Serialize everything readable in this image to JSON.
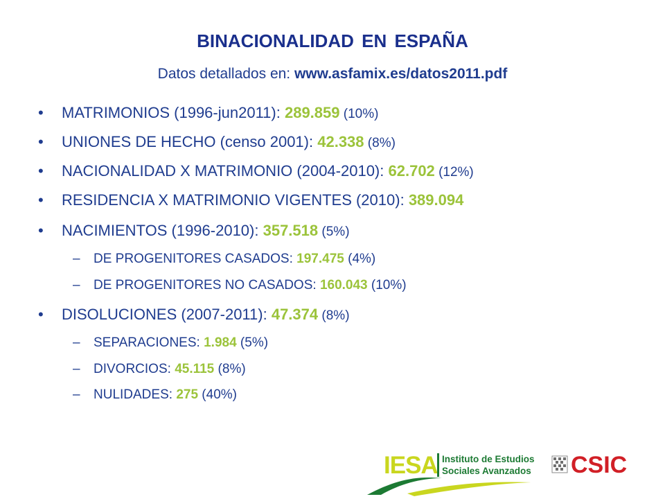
{
  "title": "BINACIONALIDAD EN ESPAÑA",
  "subtitle": {
    "prefix": "Datos detallados en: ",
    "url": "www.asfamix.es/datos2011.pdf"
  },
  "items": [
    {
      "label": "MATRIMONIOS (1996-jun2011): ",
      "value": "289.859",
      "pct": " (10%)"
    },
    {
      "label": "UNIONES DE HECHO (censo 2001): ",
      "value": "42.338",
      "pct": " (8%)"
    },
    {
      "label": "NACIONALIDAD X MATRIMONIO (2004-2010): ",
      "value": "62.702",
      "pct": " (12%)"
    },
    {
      "label": "RESIDENCIA X MATRIMONIO VIGENTES (2010): ",
      "value": "389.094",
      "pct": ""
    },
    {
      "label": "NACIMIENTOS (1996-2010): ",
      "value": "357.518",
      "pct": " (5%)",
      "subs": [
        {
          "label": "DE PROGENITORES CASADOS: ",
          "value": "197.475",
          "pct": " (4%)"
        },
        {
          "label": "DE PROGENITORES NO CASADOS: ",
          "value": "160.043",
          "pct": " (10%)"
        }
      ]
    },
    {
      "label": "DISOLUCIONES (2007-2011): ",
      "value": "47.374",
      "pct": " (8%)",
      "subs": [
        {
          "label": "SEPARACIONES: ",
          "value": "1.984",
          "pct": " (5%)"
        },
        {
          "label": "DIVORCIOS: ",
          "value": "45.115",
          "pct": " (8%)"
        },
        {
          "label": "NULIDADES: ",
          "value": "275",
          "pct": " (40%)"
        }
      ]
    }
  ],
  "bullet": "•",
  "dash": "–",
  "logos": {
    "iesa": {
      "abbr": "IESA",
      "line1": "Instituto de Estudios",
      "line2": "Sociales Avanzados"
    },
    "csic": {
      "abbr": "CSIC"
    }
  },
  "colors": {
    "text": "#1f3c8f",
    "title": "#1a2f8c",
    "value": "#9bc33a",
    "csic": "#d11f26",
    "iesa_green": "#1c7a33",
    "iesa_yellow": "#c9d61f"
  }
}
